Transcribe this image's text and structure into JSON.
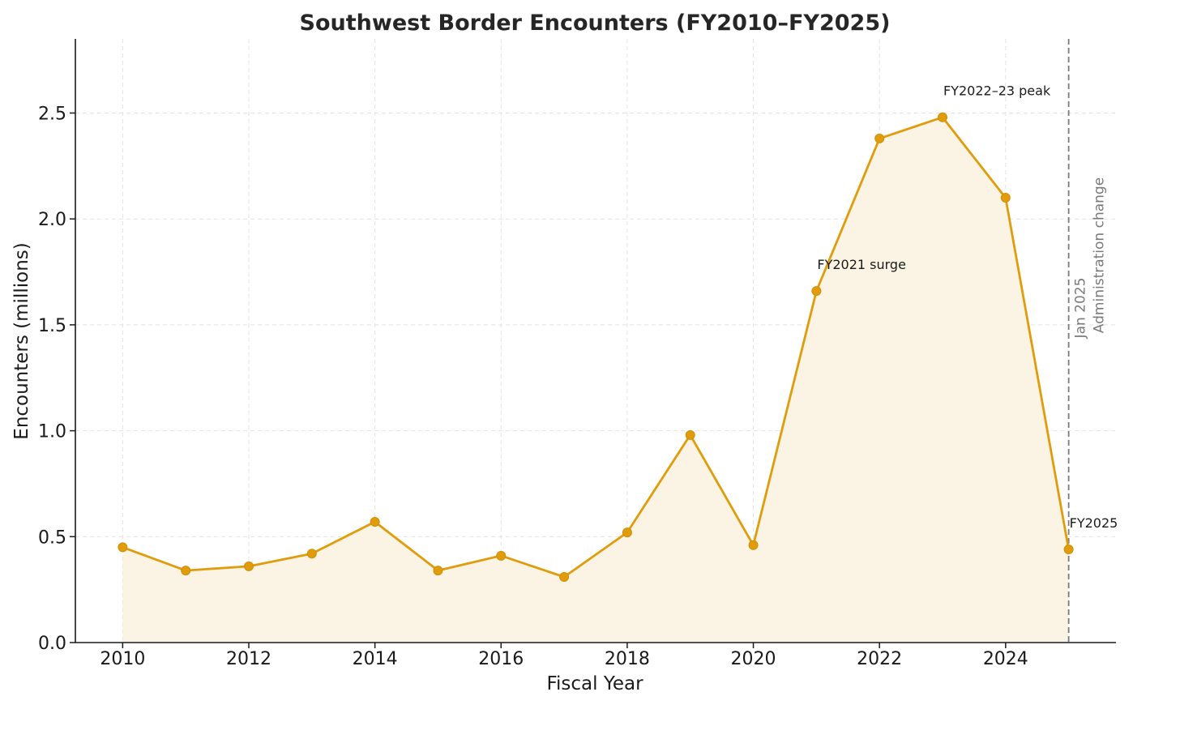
{
  "chart_data": {
    "type": "area",
    "title": "Southwest Border Encounters (FY2010–FY2025)",
    "xlabel": "Fiscal Year",
    "ylabel": "Encounters (millions)",
    "x": [
      2010,
      2011,
      2012,
      2013,
      2014,
      2015,
      2016,
      2017,
      2018,
      2019,
      2020,
      2021,
      2022,
      2023,
      2024,
      2025
    ],
    "series": [
      {
        "values": [
          0.45,
          0.34,
          0.36,
          0.42,
          0.57,
          0.34,
          0.41,
          0.31,
          0.52,
          0.98,
          0.46,
          1.66,
          2.38,
          2.48,
          2.1,
          0.44
        ]
      }
    ],
    "xlim": [
      2009.25,
      2025.75
    ],
    "ylim": [
      0,
      2.85
    ],
    "xticks": [
      "2010",
      "2012",
      "2014",
      "2016",
      "2018",
      "2020",
      "2022",
      "2024"
    ],
    "yticks": [
      "0.0",
      "0.5",
      "1.0",
      "1.5",
      "2.0",
      "2.5"
    ],
    "grid": true,
    "line_color": "#e09c0b",
    "fill_color": "#fbf3e3",
    "annotations": [
      {
        "text": "FY2021 surge",
        "x": 2021,
        "y": 1.66
      },
      {
        "text": "FY2022–23 peak",
        "x": 2023,
        "y": 2.48
      },
      {
        "text": "FY2025",
        "x": 2025,
        "y": 0.44
      }
    ],
    "vline": {
      "x": 2025,
      "label_line1": "Jan 2025",
      "label_line2": "Administration change",
      "color": "#7a7a7a"
    }
  }
}
